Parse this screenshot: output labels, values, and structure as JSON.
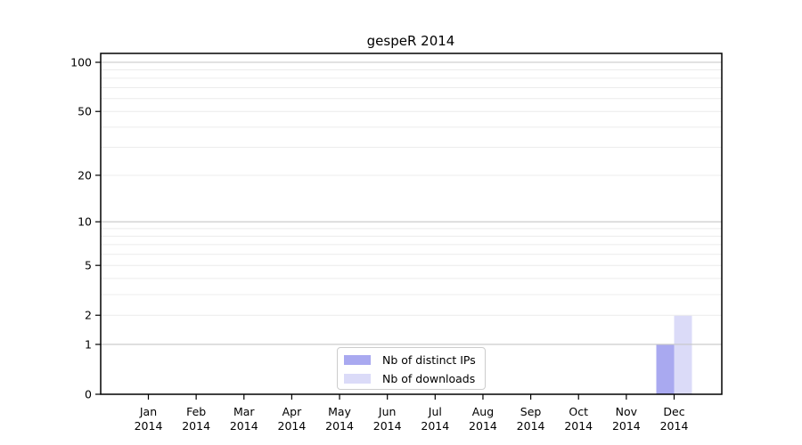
{
  "title": "gespeR 2014",
  "legend": {
    "items": [
      {
        "label": "Nb of distinct IPs",
        "color": "#a9a9f0"
      },
      {
        "label": "Nb of downloads",
        "color": "#dbdbf8"
      }
    ]
  },
  "colors": {
    "background": "#ffffff",
    "axis": "#000000",
    "major_grid": "#c6c6c6",
    "minor_grid": "#ececec",
    "legend_border": "#cccccc",
    "bar_distinct_ips": "#a9a9f0",
    "bar_downloads": "#dbdbf8"
  },
  "chart_data": {
    "type": "bar",
    "title": "gespeR 2014",
    "categories": [
      "Jan 2014",
      "Feb 2014",
      "Mar 2014",
      "Apr 2014",
      "May 2014",
      "Jun 2014",
      "Jul 2014",
      "Aug 2014",
      "Sep 2014",
      "Oct 2014",
      "Nov 2014",
      "Dec 2014"
    ],
    "months": [
      "Jan",
      "Feb",
      "Mar",
      "Apr",
      "May",
      "Jun",
      "Jul",
      "Aug",
      "Sep",
      "Oct",
      "Nov",
      "Dec"
    ],
    "year": "2014",
    "series": [
      {
        "name": "Nb of distinct IPs",
        "color": "#a9a9f0",
        "values": [
          0,
          0,
          0,
          0,
          0,
          0,
          0,
          0,
          0,
          0,
          0,
          1
        ]
      },
      {
        "name": "Nb of downloads",
        "color": "#dbdbf8",
        "values": [
          0,
          0,
          0,
          0,
          0,
          0,
          0,
          0,
          0,
          0,
          0,
          2
        ]
      }
    ],
    "xlabel": "",
    "ylabel": "",
    "y_scale": "log1p",
    "ylim": [
      0,
      100
    ],
    "y_ticks": [
      0,
      1,
      2,
      5,
      10,
      20,
      50,
      100
    ],
    "major_gridlines": [
      1,
      10,
      100
    ],
    "minor_gridlines": [
      2,
      3,
      4,
      5,
      6,
      7,
      8,
      9,
      20,
      30,
      40,
      50,
      60,
      70,
      80,
      90
    ],
    "grid": true,
    "grid_on_top_of_bars": true,
    "legend_position": "lower center inside"
  }
}
